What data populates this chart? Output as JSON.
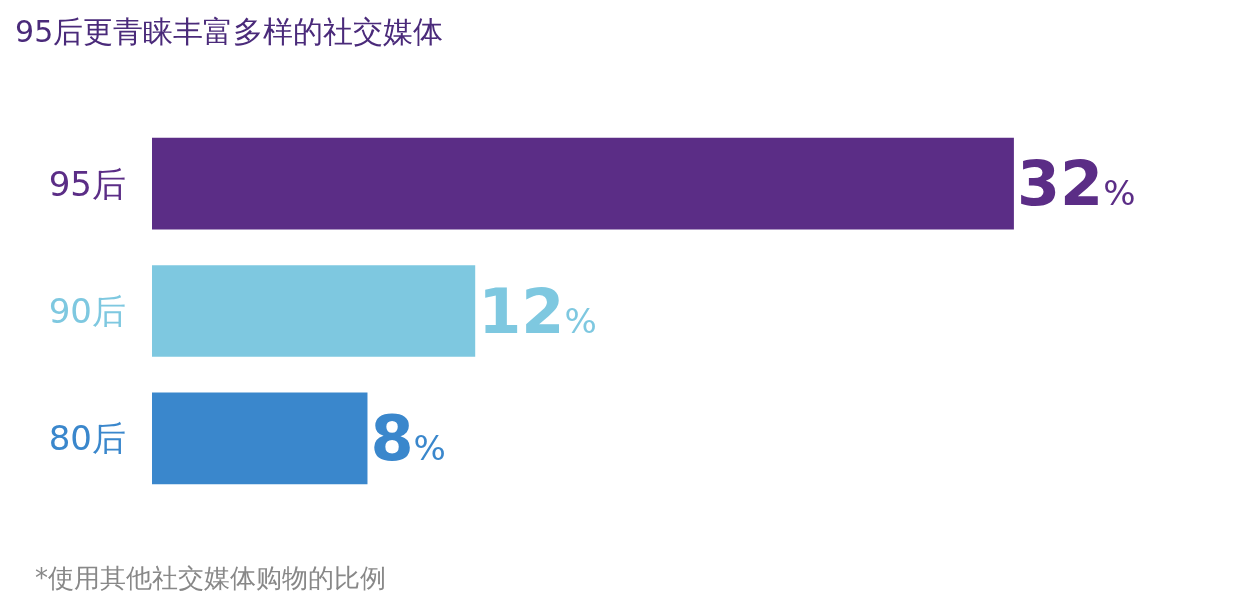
{
  "chart_data": {
    "type": "bar",
    "orientation": "horizontal",
    "title": "95后更青睐丰富多样的社交媒体",
    "categories": [
      "95后",
      "90后",
      "80后"
    ],
    "values": [
      32,
      12,
      8
    ],
    "colors": [
      "#5b2d86",
      "#7ec8e0",
      "#3a87cc"
    ],
    "value_labels": [
      "32%",
      "12%",
      "8%"
    ],
    "legend": false,
    "annotations": [
      "*使用其他社交媒体购物的比例"
    ]
  }
}
